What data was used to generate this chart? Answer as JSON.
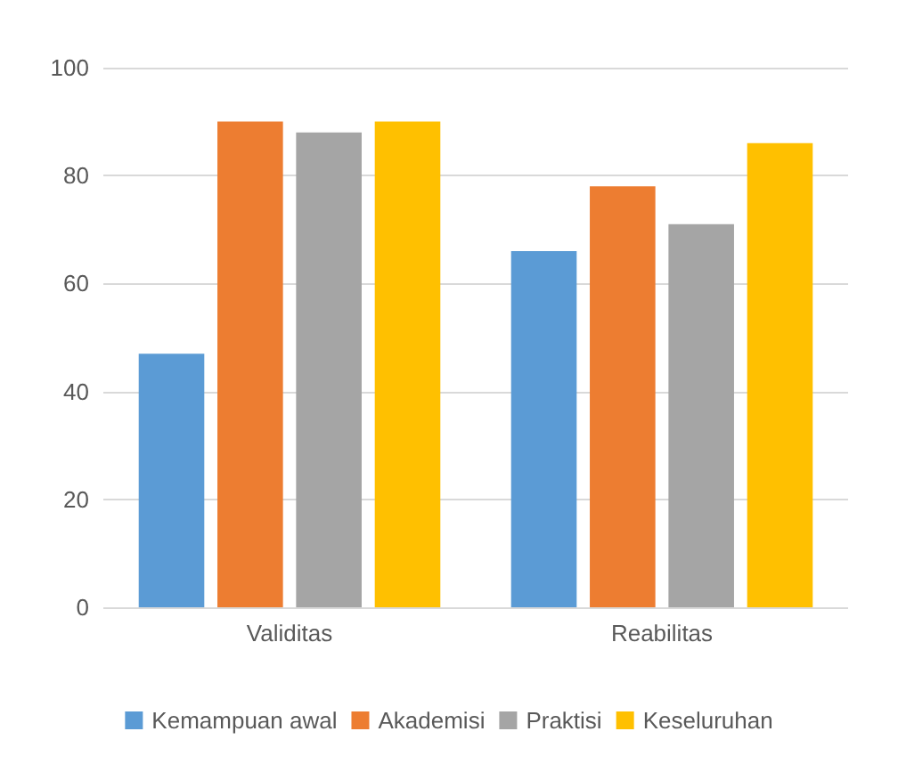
{
  "chart_data": {
    "type": "bar",
    "categories": [
      "Validitas",
      "Reabilitas"
    ],
    "series": [
      {
        "name": "Kemampuan awal",
        "color": "#5b9bd5",
        "values": [
          47,
          66
        ]
      },
      {
        "name": "Akademisi",
        "color": "#ed7d31",
        "values": [
          90,
          78
        ]
      },
      {
        "name": "Praktisi",
        "color": "#a5a5a5",
        "values": [
          88,
          71
        ]
      },
      {
        "name": "Keseluruhan",
        "color": "#ffc000",
        "values": [
          90,
          86
        ]
      }
    ],
    "ylim": [
      0,
      100
    ],
    "yticks": [
      0,
      20,
      40,
      60,
      80,
      100
    ],
    "grid": "y",
    "legend": "bottom"
  }
}
